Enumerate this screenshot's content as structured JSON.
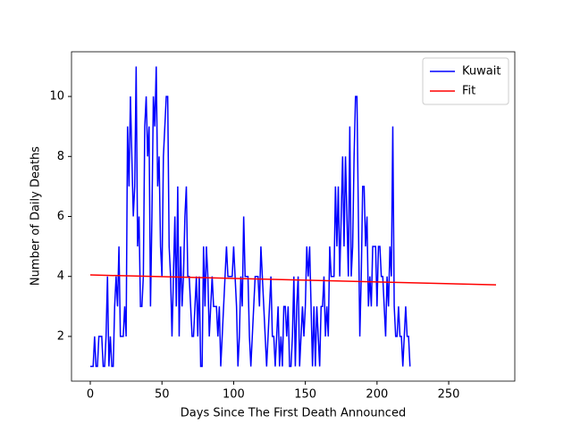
{
  "chart_data": {
    "type": "line",
    "xlabel": "Days Since The First Death Announced",
    "ylabel": "Number of Daily Deaths",
    "xlim": [
      -13.1,
      296.1
    ],
    "ylim": [
      0.51,
      11.49
    ],
    "xticks": [
      0,
      50,
      100,
      150,
      200,
      250
    ],
    "yticks": [
      2,
      4,
      6,
      8,
      10
    ],
    "legend": "upper right",
    "series": [
      {
        "name": "Kuwait",
        "color": "#0000ff",
        "x": [
          0,
          1,
          2,
          3,
          4,
          5,
          6,
          7,
          8,
          9,
          10,
          11,
          12,
          13,
          14,
          15,
          16,
          17,
          18,
          19,
          20,
          21,
          22,
          23,
          24,
          25,
          26,
          27,
          28,
          29,
          30,
          31,
          32,
          33,
          34,
          35,
          36,
          37,
          38,
          39,
          40,
          41,
          42,
          43,
          44,
          45,
          46,
          47,
          48,
          49,
          50,
          51,
          52,
          53,
          54,
          55,
          56,
          57,
          58,
          59,
          60,
          61,
          62,
          63,
          64,
          65,
          66,
          67,
          68,
          69,
          70,
          71,
          72,
          73,
          74,
          75,
          76,
          77,
          78,
          79,
          80,
          81,
          82,
          83,
          84,
          85,
          86,
          87,
          88,
          89,
          90,
          91,
          92,
          93,
          94,
          95,
          96,
          97,
          98,
          99,
          100,
          101,
          102,
          103,
          104,
          105,
          106,
          107,
          108,
          109,
          110,
          111,
          112,
          113,
          114,
          115,
          116,
          117,
          118,
          119,
          120,
          121,
          122,
          123,
          124,
          125,
          126,
          127,
          128,
          129,
          130,
          131,
          132,
          133,
          134,
          135,
          136,
          137,
          138,
          139,
          140,
          141,
          142,
          143,
          144,
          145,
          146,
          147,
          148,
          149,
          150,
          151,
          152,
          153,
          154,
          155,
          156,
          157,
          158,
          159,
          160,
          161,
          162,
          163,
          164,
          165,
          166,
          167,
          168,
          169,
          170,
          171,
          172,
          173,
          174,
          175,
          176,
          177,
          178,
          179,
          180,
          181,
          182,
          183,
          184,
          185,
          186,
          187,
          188,
          189,
          190,
          191,
          192,
          193,
          194,
          195,
          196,
          197,
          198,
          199,
          200,
          201,
          202,
          203,
          204,
          205,
          206,
          207,
          208,
          209,
          210,
          211,
          212,
          213,
          214,
          215,
          216,
          217,
          218,
          219,
          220,
          221,
          222,
          223
        ],
        "values": [
          1,
          1,
          1,
          2,
          1,
          1,
          2,
          2,
          2,
          1,
          1,
          2,
          4,
          1,
          2,
          1,
          1,
          3,
          4,
          3,
          5,
          2,
          2,
          2,
          3,
          2,
          9,
          7,
          10,
          8,
          6,
          7,
          11,
          5,
          6,
          3,
          3,
          4,
          9,
          10,
          8,
          9,
          3,
          6,
          10,
          9,
          11,
          7,
          8,
          5,
          4,
          8,
          9,
          10,
          10,
          5,
          4,
          2,
          4,
          6,
          3,
          7,
          2,
          5,
          3,
          4,
          6,
          7,
          4,
          4,
          3,
          2,
          2,
          3,
          4,
          2,
          4,
          1,
          1,
          5,
          3,
          5,
          4,
          2,
          3,
          4,
          3,
          3,
          3,
          2,
          3,
          1,
          2,
          3,
          4,
          5,
          4,
          4,
          4,
          4,
          5,
          4,
          3,
          1,
          2,
          4,
          3,
          6,
          4,
          4,
          4,
          2,
          1,
          2,
          3,
          4,
          4,
          4,
          3,
          5,
          4,
          3,
          2,
          1,
          2,
          3,
          4,
          2,
          2,
          1,
          2,
          3,
          1,
          2,
          1,
          3,
          3,
          2,
          3,
          1,
          1,
          2,
          4,
          1,
          3,
          4,
          1,
          2,
          3,
          2,
          3,
          5,
          4,
          5,
          3,
          1,
          3,
          1,
          3,
          2,
          1,
          3,
          3,
          4,
          2,
          3,
          2,
          5,
          4,
          4,
          4,
          7,
          5,
          7,
          4,
          6,
          8,
          5,
          8,
          6,
          4,
          9,
          4,
          5,
          8,
          10,
          10,
          6,
          2,
          4,
          7,
          7,
          5,
          6,
          3,
          4,
          3,
          5,
          5,
          5,
          3,
          5,
          5,
          4,
          4,
          3,
          2,
          4,
          3,
          5,
          4,
          9,
          3,
          2,
          2,
          3,
          2,
          2,
          1,
          2,
          3,
          2,
          2,
          1
        ]
      },
      {
        "name": "Fit",
        "color": "#ff0000",
        "x": [
          0,
          283
        ],
        "values": [
          4.05,
          3.72
        ]
      }
    ]
  }
}
